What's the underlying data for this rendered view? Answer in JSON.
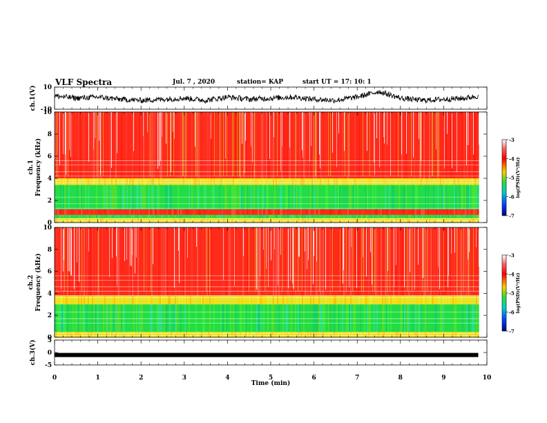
{
  "header": {
    "title": "VLF Spectra",
    "date": "Jul. 7 , 2020",
    "station": "station= KAP",
    "start": "start UT = 17: 10: 1"
  },
  "colors": {
    "trace": "#000000",
    "spectrum_red": "#ff2a1a",
    "spectrum_yellow": "#f0e020",
    "spectrum_green": "#22dd44"
  },
  "chart_data": [
    {
      "type": "line",
      "panel": "ch1-voltage",
      "ylabel": "ch.1(V)",
      "ylim": [
        -10,
        10
      ],
      "yticks": [
        "10",
        "-10"
      ],
      "xlim": [
        0,
        10
      ],
      "x": [
        0.0,
        0.5,
        1.0,
        1.5,
        2.0,
        2.5,
        3.0,
        3.5,
        4.0,
        4.5,
        5.0,
        5.5,
        6.0,
        6.5,
        7.0,
        7.5,
        8.0,
        8.5,
        9.0,
        9.5,
        9.8
      ],
      "y": [
        2,
        0,
        1,
        -1,
        -2,
        -1,
        0,
        -2,
        1,
        -1,
        0,
        1,
        -1,
        -2,
        1,
        6,
        0,
        -2,
        -1,
        0,
        2
      ]
    },
    {
      "type": "heatmap",
      "panel": "ch1-spectrogram",
      "ylabel": "ch.1 Frequency (kHz)",
      "ylim": [
        0,
        10
      ],
      "yticks": [
        "0",
        "2",
        "4",
        "6",
        "8",
        "10"
      ],
      "xlim": [
        0,
        10
      ],
      "bands": [
        {
          "from": 0,
          "to": 0.4,
          "level": "yellow"
        },
        {
          "from": 0.4,
          "to": 0.7,
          "level": "green"
        },
        {
          "from": 0.7,
          "to": 1.2,
          "level": "red"
        },
        {
          "from": 1.2,
          "to": 3.4,
          "level": "green"
        },
        {
          "from": 3.4,
          "to": 4.0,
          "level": "yellow"
        },
        {
          "from": 4.0,
          "to": 10,
          "level": "red"
        }
      ],
      "colorbar": {
        "label": "log(PSD)(V²/Hz)",
        "ticks": [
          "-3",
          "-4",
          "-5",
          "-6",
          "-7"
        ],
        "range": [
          -7,
          -3
        ]
      }
    },
    {
      "type": "heatmap",
      "panel": "ch2-spectrogram",
      "ylabel": "ch.2 Frequency (kHz)",
      "ylim": [
        0,
        10
      ],
      "yticks": [
        "0",
        "2",
        "4",
        "6",
        "8",
        "10"
      ],
      "xlim": [
        0,
        10
      ],
      "bands": [
        {
          "from": 0,
          "to": 0.5,
          "level": "yellow"
        },
        {
          "from": 0.5,
          "to": 3.0,
          "level": "green"
        },
        {
          "from": 3.0,
          "to": 3.8,
          "level": "yellow"
        },
        {
          "from": 3.8,
          "to": 10,
          "level": "red"
        }
      ],
      "colorbar": {
        "label": "log(PSD)(V²/Hz)",
        "ticks": [
          "-3",
          "-4",
          "-5",
          "-6",
          "-7"
        ],
        "range": [
          -7,
          -3
        ]
      }
    },
    {
      "type": "line",
      "panel": "ch3-voltage",
      "ylabel": "ch.3(V)",
      "ylim": [
        -5,
        5
      ],
      "yticks": [
        "5",
        "0",
        "-5"
      ],
      "xlim": [
        0,
        10
      ],
      "x": [
        0,
        9.8
      ],
      "y": [
        -1,
        -1
      ]
    }
  ],
  "xaxis": {
    "label": "Time (min)",
    "ticks": [
      "0",
      "1",
      "2",
      "3",
      "4",
      "5",
      "6",
      "7",
      "8",
      "9",
      "10"
    ]
  }
}
